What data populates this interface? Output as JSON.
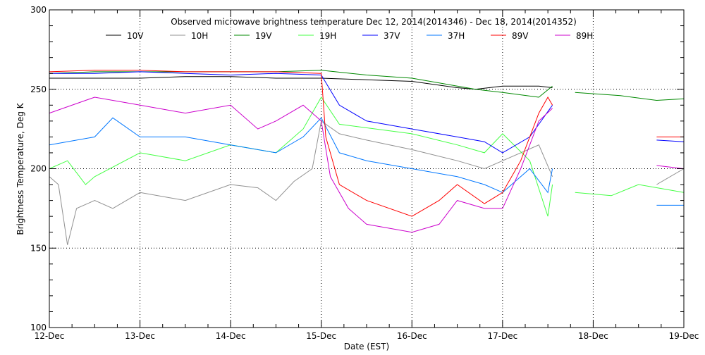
{
  "chart_data": {
    "type": "line",
    "title": "Observed microwave brightness temperature Dec 12, 2014(2014346) - Dec 18, 2014(2014352)",
    "xlabel": "Date (EST)",
    "ylabel": "Brightness Temperature, Deg K",
    "xlim": [
      12,
      19
    ],
    "ylim": [
      100,
      300
    ],
    "xticks": [
      {
        "v": 12,
        "label": "12-Dec"
      },
      {
        "v": 13,
        "label": "13-Dec"
      },
      {
        "v": 14,
        "label": "14-Dec"
      },
      {
        "v": 15,
        "label": "15-Dec"
      },
      {
        "v": 16,
        "label": "16-Dec"
      },
      {
        "v": 17,
        "label": "17-Dec"
      },
      {
        "v": 18,
        "label": "18-Dec"
      },
      {
        "v": 19,
        "label": "19-Dec"
      }
    ],
    "yticks": [
      {
        "v": 100,
        "label": "100"
      },
      {
        "v": 150,
        "label": "150"
      },
      {
        "v": 200,
        "label": "200"
      },
      {
        "v": 250,
        "label": "250"
      },
      {
        "v": 300,
        "label": "300"
      }
    ],
    "grid": "dotted",
    "legend": "top",
    "series": [
      {
        "name": "10V",
        "color": "#000000",
        "points": [
          [
            12,
            257
          ],
          [
            12.5,
            257
          ],
          [
            13,
            257
          ],
          [
            13.5,
            258
          ],
          [
            14,
            258
          ],
          [
            14.5,
            257
          ],
          [
            15,
            257
          ],
          [
            15.5,
            256
          ],
          [
            16,
            255
          ],
          [
            16.5,
            251
          ],
          [
            16.7,
            250
          ],
          [
            17,
            252
          ],
          [
            17.4,
            252
          ],
          [
            17.55,
            251
          ]
        ]
      },
      {
        "name": "10H",
        "color": "#909090",
        "points": [
          [
            12,
            195
          ],
          [
            12.1,
            190
          ],
          [
            12.2,
            152
          ],
          [
            12.3,
            175
          ],
          [
            12.5,
            180
          ],
          [
            12.7,
            175
          ],
          [
            13,
            185
          ],
          [
            13.3,
            182
          ],
          [
            13.5,
            180
          ],
          [
            14,
            190
          ],
          [
            14.3,
            188
          ],
          [
            14.5,
            180
          ],
          [
            14.7,
            192
          ],
          [
            14.9,
            200
          ],
          [
            15,
            230
          ],
          [
            15.2,
            222
          ],
          [
            15.5,
            218
          ],
          [
            16,
            212
          ],
          [
            16.5,
            205
          ],
          [
            16.8,
            200
          ],
          [
            17,
            205
          ],
          [
            17.4,
            215
          ],
          [
            17.55,
            195
          ],
          null,
          [
            18.7,
            190
          ],
          [
            19,
            200
          ]
        ]
      },
      {
        "name": "19V",
        "color": "#008800",
        "points": [
          [
            12,
            260
          ],
          [
            12.5,
            261
          ],
          [
            13,
            261
          ],
          [
            13.5,
            261
          ],
          [
            14,
            261
          ],
          [
            14.5,
            261
          ],
          [
            15,
            262
          ],
          [
            15.5,
            259
          ],
          [
            16,
            257
          ],
          [
            16.5,
            252
          ],
          [
            16.7,
            250
          ],
          [
            17,
            248
          ],
          [
            17.4,
            245
          ],
          [
            17.55,
            252
          ],
          null,
          [
            17.8,
            248
          ],
          [
            18.3,
            246
          ],
          [
            18.7,
            243
          ],
          [
            19,
            244
          ]
        ]
      },
      {
        "name": "19H",
        "color": "#44ff44",
        "points": [
          [
            12,
            200
          ],
          [
            12.2,
            205
          ],
          [
            12.4,
            190
          ],
          [
            12.5,
            195
          ],
          [
            13,
            210
          ],
          [
            13.5,
            205
          ],
          [
            14,
            215
          ],
          [
            14.5,
            210
          ],
          [
            14.8,
            225
          ],
          [
            15,
            245
          ],
          [
            15.2,
            228
          ],
          [
            16,
            222
          ],
          [
            16.5,
            215
          ],
          [
            16.8,
            210
          ],
          [
            17,
            222
          ],
          [
            17.3,
            205
          ],
          [
            17.5,
            170
          ],
          [
            17.55,
            190
          ],
          null,
          [
            17.8,
            185
          ],
          [
            18.2,
            183
          ],
          [
            18.5,
            190
          ],
          [
            19,
            185
          ]
        ]
      },
      {
        "name": "37V",
        "color": "#0000ff",
        "points": [
          [
            12,
            260
          ],
          [
            12.5,
            260
          ],
          [
            13,
            261
          ],
          [
            13.5,
            260
          ],
          [
            14,
            259
          ],
          [
            14.5,
            260
          ],
          [
            15,
            259
          ],
          [
            15.2,
            240
          ],
          [
            15.5,
            230
          ],
          [
            16,
            225
          ],
          [
            16.5,
            220
          ],
          [
            16.8,
            217
          ],
          [
            17,
            210
          ],
          [
            17.3,
            220
          ],
          [
            17.55,
            240
          ],
          null,
          [
            18.7,
            218
          ],
          [
            19,
            217
          ]
        ]
      },
      {
        "name": "37H",
        "color": "#0077ff",
        "points": [
          [
            12,
            215
          ],
          [
            12.5,
            220
          ],
          [
            12.7,
            232
          ],
          [
            13,
            220
          ],
          [
            13.5,
            220
          ],
          [
            14,
            215
          ],
          [
            14.5,
            210
          ],
          [
            14.8,
            220
          ],
          [
            15,
            232
          ],
          [
            15.2,
            210
          ],
          [
            15.5,
            205
          ],
          [
            16,
            200
          ],
          [
            16.5,
            195
          ],
          [
            16.8,
            190
          ],
          [
            17,
            185
          ],
          [
            17.3,
            200
          ],
          [
            17.5,
            185
          ],
          [
            17.55,
            200
          ],
          null,
          [
            18.7,
            177
          ],
          [
            19,
            177
          ]
        ]
      },
      {
        "name": "89V",
        "color": "#ff0000",
        "points": [
          [
            12,
            261
          ],
          [
            12.5,
            262
          ],
          [
            13,
            262
          ],
          [
            13.5,
            261
          ],
          [
            14,
            261
          ],
          [
            14.5,
            261
          ],
          [
            15,
            260
          ],
          [
            15.05,
            220
          ],
          [
            15.2,
            190
          ],
          [
            15.5,
            180
          ],
          [
            16,
            170
          ],
          [
            16.3,
            180
          ],
          [
            16.5,
            190
          ],
          [
            16.8,
            178
          ],
          [
            17,
            185
          ],
          [
            17.2,
            205
          ],
          [
            17.4,
            235
          ],
          [
            17.5,
            245
          ],
          [
            17.55,
            240
          ],
          null,
          [
            18.7,
            220
          ],
          [
            19,
            220
          ]
        ]
      },
      {
        "name": "89H",
        "color": "#cc00cc",
        "points": [
          [
            12,
            235
          ],
          [
            12.5,
            245
          ],
          [
            13,
            240
          ],
          [
            13.5,
            235
          ],
          [
            14,
            240
          ],
          [
            14.3,
            225
          ],
          [
            14.5,
            230
          ],
          [
            14.8,
            240
          ],
          [
            15,
            230
          ],
          [
            15.1,
            195
          ],
          [
            15.3,
            175
          ],
          [
            15.5,
            165
          ],
          [
            16,
            160
          ],
          [
            16.3,
            165
          ],
          [
            16.5,
            180
          ],
          [
            16.8,
            175
          ],
          [
            17,
            175
          ],
          [
            17.2,
            200
          ],
          [
            17.4,
            230
          ],
          [
            17.55,
            238
          ],
          null,
          [
            18.7,
            202
          ],
          [
            19,
            200
          ]
        ]
      }
    ]
  }
}
